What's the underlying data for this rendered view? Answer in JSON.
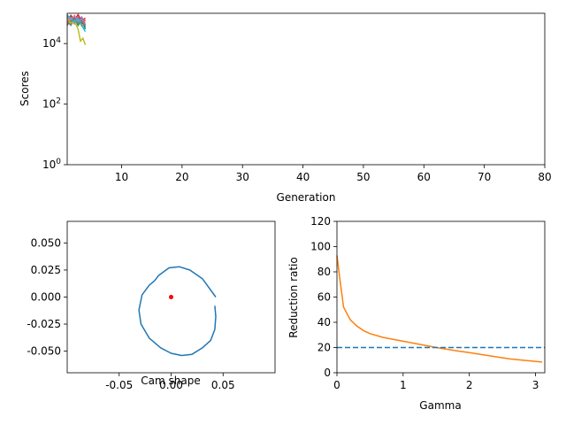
{
  "chart_data": [
    {
      "type": "line",
      "title": "",
      "xlabel": "Generation",
      "ylabel": "Scores",
      "xlim": [
        1,
        80
      ],
      "ylim": [
        1,
        100000
      ],
      "yscale": "log",
      "grid": false,
      "xticks": [
        10,
        20,
        30,
        40,
        50,
        60,
        70,
        80
      ],
      "yticks": [
        {
          "value": 1,
          "base": "10",
          "exp": "0"
        },
        {
          "value": 100,
          "base": "10",
          "exp": "2"
        },
        {
          "value": 10000,
          "base": "10",
          "exp": "4"
        }
      ],
      "series": [
        {
          "color": "#1f77b4",
          "x": [
            1,
            1.6,
            2.2,
            2.8,
            3.4,
            4.0
          ],
          "y": [
            70000,
            55000,
            72000,
            40000,
            60000,
            30000
          ]
        },
        {
          "color": "#ff7f0e",
          "x": [
            1,
            1.6,
            2.2,
            2.8,
            3.4,
            4.0
          ],
          "y": [
            60000,
            80000,
            45000,
            65000,
            38000,
            52000
          ]
        },
        {
          "color": "#2ca02c",
          "x": [
            1,
            1.6,
            2.2,
            2.8,
            3.4,
            4.0
          ],
          "y": [
            90000,
            50000,
            75000,
            42000,
            68000,
            35000
          ]
        },
        {
          "color": "#d62728",
          "x": [
            1,
            1.6,
            2.2,
            2.8,
            3.4,
            4.0
          ],
          "y": [
            50000,
            85000,
            60000,
            90000,
            55000,
            70000
          ]
        },
        {
          "color": "#9467bd",
          "x": [
            1,
            1.6,
            2.2,
            2.8,
            3.4,
            4.0
          ],
          "y": [
            80000,
            45000,
            66000,
            50000,
            75000,
            40000
          ]
        },
        {
          "color": "#8c564b",
          "x": [
            1,
            1.6,
            2.2,
            2.8,
            3.4,
            4.0
          ],
          "y": [
            40000,
            65000,
            50000,
            72000,
            45000,
            60000
          ]
        },
        {
          "color": "#e377c2",
          "x": [
            1,
            1.6,
            2.2,
            2.8,
            3.4,
            4.0
          ],
          "y": [
            75000,
            60000,
            85000,
            55000,
            62000,
            48000
          ]
        },
        {
          "color": "#7f7f7f",
          "x": [
            1,
            1.6,
            2.2,
            2.8,
            3.4,
            4.0
          ],
          "y": [
            55000,
            40000,
            62000,
            46000,
            58000,
            42000
          ]
        },
        {
          "color": "#bcbd22",
          "x": [
            1,
            1.6,
            2.2,
            2.8,
            3.2,
            3.6,
            4.0
          ],
          "y": [
            65000,
            48000,
            55000,
            30000,
            12000,
            15000,
            9000
          ]
        },
        {
          "color": "#17becf",
          "x": [
            1,
            1.6,
            2.2,
            2.8,
            3.4,
            4.0
          ],
          "y": [
            85000,
            70000,
            50000,
            68000,
            40000,
            25000
          ]
        }
      ]
    },
    {
      "type": "line",
      "title": "",
      "xlabel": "Cam shape",
      "ylabel": "",
      "xlim": [
        -0.1,
        0.1
      ],
      "ylim": [
        -0.07,
        0.07
      ],
      "grid": false,
      "xticks": [
        "-0.05",
        "0.00",
        "0.05"
      ],
      "yticks": [
        "0.050",
        "0.025",
        "0.000",
        "-0.025",
        "-0.050"
      ],
      "curve_color": "#1f77b4",
      "curve": [
        [
          0.043,
          0.0
        ],
        [
          0.03,
          0.017
        ],
        [
          0.018,
          0.025
        ],
        [
          0.008,
          0.028
        ],
        [
          -0.002,
          0.027
        ],
        [
          -0.012,
          0.02
        ],
        [
          -0.016,
          0.015
        ],
        [
          -0.021,
          0.011
        ],
        [
          -0.028,
          0.002
        ],
        [
          -0.031,
          -0.012
        ],
        [
          -0.029,
          -0.025
        ],
        [
          -0.021,
          -0.038
        ],
        [
          -0.01,
          -0.047
        ],
        [
          0.0,
          -0.052
        ],
        [
          0.01,
          -0.054
        ],
        [
          0.02,
          -0.053
        ],
        [
          0.03,
          -0.047
        ],
        [
          0.038,
          -0.04
        ],
        [
          0.042,
          -0.03
        ],
        [
          0.043,
          -0.018
        ],
        [
          0.042,
          -0.008
        ]
      ],
      "marker": {
        "x": 0.0,
        "y": 0.0,
        "color": "#ff0000"
      }
    },
    {
      "type": "line",
      "title": "",
      "xlabel": "Gamma",
      "ylabel": "Reduction ratio",
      "xlim": [
        0,
        3.14
      ],
      "ylim": [
        0,
        120
      ],
      "grid": false,
      "xticks": [
        "0",
        "1",
        "2",
        "3"
      ],
      "yticks": [
        "0",
        "20",
        "40",
        "60",
        "80",
        "100",
        "120"
      ],
      "series": [
        {
          "color": "#ff7f0e",
          "style": "solid",
          "x": [
            0.0,
            0.05,
            0.1,
            0.2,
            0.3,
            0.4,
            0.5,
            0.7,
            1.0,
            1.3,
            1.5,
            1.8,
            2.0,
            2.3,
            2.6,
            2.8,
            3.1
          ],
          "y": [
            93,
            72,
            52,
            42,
            37,
            33.5,
            31,
            28,
            25,
            22,
            20,
            17.5,
            16,
            13.5,
            11,
            10,
            8.5
          ]
        },
        {
          "color": "#1f77b4",
          "style": "dashed",
          "x": [
            0,
            3.14
          ],
          "y": [
            20,
            20
          ]
        }
      ]
    }
  ]
}
